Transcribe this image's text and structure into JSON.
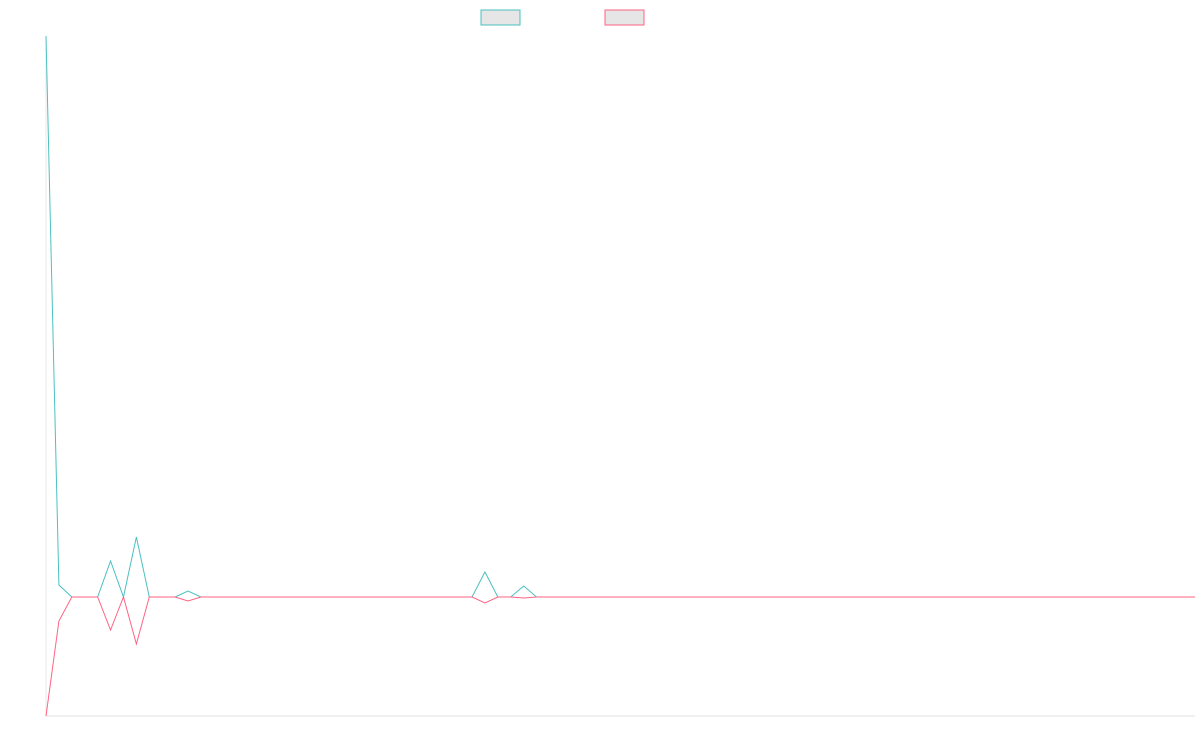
{
  "chart_data": {
    "type": "line",
    "categories": [
      null,
      null,
      null,
      null,
      null,
      null,
      null,
      null,
      null,
      null,
      null,
      null,
      null,
      null,
      null,
      null,
      null,
      null,
      null,
      null,
      null,
      null,
      null,
      null,
      null,
      null,
      null,
      null,
      null,
      null,
      null,
      null,
      null,
      null,
      null,
      null,
      null,
      null,
      null,
      null,
      null,
      null,
      null,
      null,
      null,
      null,
      null,
      null,
      null,
      null,
      null,
      null,
      null,
      null,
      null,
      null,
      null,
      null,
      null,
      null,
      null,
      null,
      null,
      null,
      null,
      null,
      null,
      null,
      null,
      null,
      null,
      null,
      null,
      null,
      null,
      null,
      null,
      null,
      null,
      null,
      null,
      null,
      null,
      null,
      null,
      null,
      null,
      null,
      null,
      null
    ],
    "series": [
      {
        "color": "#4bc0c0",
        "values": [
          561,
          12,
          0,
          0,
          0,
          36,
          0,
          60,
          0,
          0,
          0,
          6,
          0,
          0,
          0,
          0,
          0,
          0,
          0,
          0,
          0,
          0,
          0,
          0,
          0,
          0,
          0,
          0,
          0,
          0,
          0,
          0,
          0,
          0,
          25,
          0,
          0,
          11,
          0,
          0,
          0,
          0,
          0,
          0,
          0,
          0,
          0,
          0,
          0,
          0,
          0,
          0,
          0,
          0,
          0,
          0,
          0,
          0,
          0,
          0,
          0,
          0,
          0,
          0,
          0,
          0,
          0,
          0,
          0,
          0,
          0,
          0,
          0,
          0,
          0,
          0,
          0,
          0,
          0,
          0,
          0,
          0,
          0,
          0,
          0,
          0,
          0,
          0,
          0,
          0
        ]
      },
      {
        "color": "#ff6384",
        "values": [
          -119,
          -24,
          0,
          0,
          0,
          -33,
          0,
          -47,
          0,
          0,
          0,
          -4,
          0,
          0,
          0,
          0,
          0,
          0,
          0,
          0,
          0,
          0,
          0,
          0,
          0,
          0,
          0,
          0,
          0,
          0,
          0,
          0,
          0,
          0,
          -6,
          0,
          0,
          -1,
          0,
          0,
          0,
          0,
          0,
          0,
          0,
          0,
          0,
          0,
          0,
          0,
          0,
          0,
          0,
          0,
          0,
          0,
          0,
          0,
          0,
          0,
          0,
          0,
          0,
          0,
          0,
          0,
          0,
          0,
          0,
          0,
          0,
          0,
          0,
          0,
          0,
          0,
          0,
          0,
          0,
          0,
          0,
          0,
          0,
          0,
          0,
          0,
          0,
          0,
          0,
          0
        ]
      }
    ],
    "ylim": [
      -119,
      561
    ],
    "grid": false
  }
}
